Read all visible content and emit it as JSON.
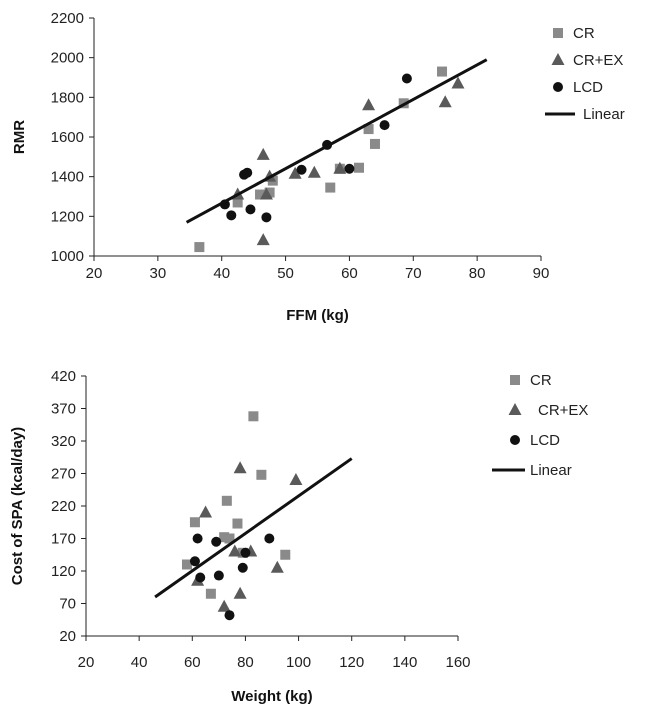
{
  "colors": {
    "cr": "#8a8a8a",
    "crex": "#5a5a5a",
    "lcd": "#111111",
    "linear": "#111111"
  },
  "chart_data": [
    {
      "type": "scatter",
      "xlabel": "FFM (kg)",
      "ylabel": "RMR",
      "xlim": [
        20,
        90
      ],
      "ylim": [
        1000,
        2200
      ],
      "xticks": [
        "20",
        "30",
        "40",
        "50",
        "60",
        "70",
        "80",
        "90"
      ],
      "yticks": [
        "1000",
        "1200",
        "1400",
        "1600",
        "1800",
        "2000",
        "2200"
      ],
      "legend": {
        "placement": "top-right",
        "entries": [
          "CR",
          "CR+EX",
          "LCD",
          "Linear"
        ]
      },
      "series": [
        {
          "name": "CR",
          "marker": "square",
          "points": [
            [
              36.5,
              1045
            ],
            [
              42.5,
              1270
            ],
            [
              46,
              1310
            ],
            [
              47.5,
              1320
            ],
            [
              48,
              1380
            ],
            [
              57,
              1345
            ],
            [
              58.5,
              1440
            ],
            [
              61.5,
              1445
            ],
            [
              63,
              1640
            ],
            [
              64,
              1565
            ],
            [
              68.5,
              1770
            ],
            [
              74.5,
              1930
            ]
          ]
        },
        {
          "name": "CR+EX",
          "marker": "triangle",
          "points": [
            [
              42.5,
              1310
            ],
            [
              46.5,
              1080
            ],
            [
              46.5,
              1510
            ],
            [
              47,
              1310
            ],
            [
              47.5,
              1400
            ],
            [
              51.5,
              1415
            ],
            [
              54.5,
              1420
            ],
            [
              58.5,
              1440
            ],
            [
              63,
              1760
            ],
            [
              75,
              1775
            ],
            [
              77,
              1870
            ]
          ]
        },
        {
          "name": "LCD",
          "marker": "circle",
          "points": [
            [
              40.5,
              1260
            ],
            [
              41.5,
              1205
            ],
            [
              43.5,
              1410
            ],
            [
              44,
              1420
            ],
            [
              44.5,
              1235
            ],
            [
              47,
              1195
            ],
            [
              52.5,
              1435
            ],
            [
              56.5,
              1560
            ],
            [
              60,
              1440
            ],
            [
              65.5,
              1660
            ],
            [
              69,
              1895
            ]
          ]
        },
        {
          "name": "Linear",
          "type": "line",
          "points": [
            [
              34.5,
              1170
            ],
            [
              81.5,
              1990
            ]
          ]
        }
      ]
    },
    {
      "type": "scatter",
      "xlabel": "Weight (kg)",
      "ylabel": "Cost of SPA (kcal/day)",
      "xlim": [
        20,
        160
      ],
      "ylim": [
        20,
        420
      ],
      "xticks": [
        "20",
        "40",
        "60",
        "80",
        "100",
        "120",
        "140",
        "160"
      ],
      "yticks": [
        "20",
        "70",
        "120",
        "170",
        "220",
        "270",
        "320",
        "370",
        "420"
      ],
      "legend": {
        "placement": "top-right",
        "entries": [
          "CR",
          "CR+EX",
          "LCD",
          "Linear"
        ]
      },
      "series": [
        {
          "name": "CR",
          "marker": "square",
          "points": [
            [
              58,
              130
            ],
            [
              61,
              195
            ],
            [
              67,
              85
            ],
            [
              72,
              172
            ],
            [
              73,
              228
            ],
            [
              74,
              170
            ],
            [
              77,
              193
            ],
            [
              79,
              148
            ],
            [
              83,
              358
            ],
            [
              86,
              268
            ],
            [
              95,
              145
            ]
          ]
        },
        {
          "name": "CR+EX",
          "marker": "triangle",
          "points": [
            [
              62,
              105
            ],
            [
              65,
              210
            ],
            [
              72,
              65
            ],
            [
              76,
              150
            ],
            [
              78,
              278
            ],
            [
              78,
              85
            ],
            [
              82,
              150
            ],
            [
              92,
              125
            ],
            [
              99,
              260
            ]
          ]
        },
        {
          "name": "LCD",
          "marker": "circle",
          "points": [
            [
              61,
              135
            ],
            [
              62,
              170
            ],
            [
              63,
              110
            ],
            [
              69,
              165
            ],
            [
              70,
              113
            ],
            [
              74,
              52
            ],
            [
              79,
              125
            ],
            [
              80,
              148
            ],
            [
              89,
              170
            ]
          ]
        },
        {
          "name": "Linear",
          "type": "line",
          "points": [
            [
              46,
              80
            ],
            [
              120,
              293
            ]
          ]
        }
      ]
    }
  ]
}
